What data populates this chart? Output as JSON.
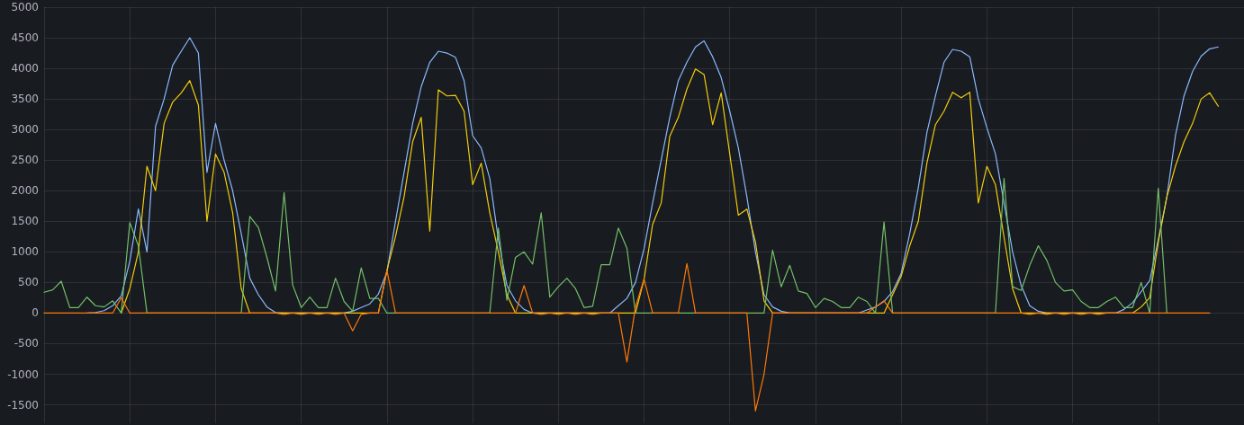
{
  "chart_data": {
    "type": "line",
    "categories": [
      null,
      null,
      null,
      null,
      null,
      null,
      null,
      null,
      null,
      null,
      null,
      null,
      null,
      null,
      null,
      null,
      null,
      null,
      null,
      null,
      null,
      null,
      null,
      null,
      null,
      null,
      null,
      null,
      null,
      null,
      null,
      null,
      null,
      null,
      null,
      null,
      null,
      null,
      null,
      null,
      null,
      null,
      null,
      null,
      null,
      null,
      null,
      null,
      null,
      null,
      null,
      null,
      null,
      null,
      null,
      null,
      null,
      null,
      null,
      null,
      null,
      null,
      null,
      null,
      null,
      null,
      null,
      null,
      null,
      null,
      null,
      null,
      null,
      null,
      null,
      null,
      null,
      null,
      null,
      null,
      null,
      null,
      null,
      null,
      null,
      null,
      null,
      null,
      null,
      null,
      null,
      null,
      null,
      null,
      null,
      null,
      null,
      null,
      null,
      null,
      null,
      null,
      null,
      null,
      null,
      null,
      null,
      null,
      null,
      null,
      null,
      null,
      null,
      null,
      null,
      null,
      null,
      null,
      null,
      null,
      null,
      null,
      null,
      null,
      null,
      null,
      null,
      null,
      null,
      null,
      null,
      null,
      null,
      null,
      null,
      null,
      null,
      null,
      null,
      null,
      null
    ],
    "series": [
      {
        "color": "#8ab8ff",
        "values": [
          null,
          null,
          null,
          null,
          null,
          0,
          10,
          40,
          120,
          280,
          850,
          1700,
          1000,
          3050,
          3500,
          4050,
          4280,
          4500,
          4250,
          2300,
          3100,
          2500,
          2000,
          1300,
          570,
          300,
          100,
          10,
          0,
          0,
          0,
          0,
          0,
          0,
          0,
          0,
          30,
          90,
          150,
          310,
          670,
          1500,
          2300,
          3100,
          3700,
          4100,
          4280,
          4250,
          4180,
          3800,
          2900,
          2700,
          2200,
          1200,
          450,
          200,
          60,
          0,
          0,
          0,
          0,
          0,
          0,
          0,
          0,
          0,
          0,
          120,
          240,
          500,
          1050,
          1800,
          2500,
          3200,
          3800,
          4100,
          4350,
          4450,
          4190,
          3850,
          3300,
          2700,
          1900,
          1000,
          300,
          100,
          30,
          0,
          0,
          0,
          0,
          0,
          0,
          0,
          0,
          0,
          50,
          100,
          190,
          350,
          650,
          1300,
          2050,
          2950,
          3550,
          4100,
          4310,
          4280,
          4190,
          3500,
          3030,
          2600,
          1800,
          1000,
          450,
          120,
          30,
          0,
          0,
          0,
          0,
          0,
          0,
          0,
          0,
          0,
          60,
          170,
          350,
          530,
          1200,
          1900,
          2900,
          3550,
          3950,
          4200,
          4320,
          4350,
          null,
          null,
          null
        ]
      },
      {
        "color": "#f2cc0c",
        "values": [
          null,
          null,
          null,
          null,
          null,
          null,
          null,
          null,
          null,
          0,
          400,
          1000,
          2400,
          2000,
          3100,
          3450,
          3600,
          3800,
          3400,
          1500,
          2600,
          2300,
          1640,
          400,
          0,
          0,
          0,
          0,
          0,
          0,
          0,
          0,
          0,
          0,
          0,
          0,
          0,
          0,
          0,
          0,
          700,
          1250,
          1900,
          2800,
          3200,
          1340,
          3650,
          3550,
          3560,
          3300,
          2100,
          2450,
          1640,
          1000,
          300,
          0,
          0,
          0,
          0,
          0,
          0,
          0,
          0,
          0,
          0,
          0,
          0,
          0,
          0,
          0,
          550,
          1450,
          1800,
          2890,
          3200,
          3660,
          3990,
          3900,
          3080,
          3600,
          2600,
          1600,
          1700,
          1160,
          200,
          0,
          0,
          0,
          0,
          0,
          0,
          0,
          0,
          0,
          0,
          0,
          0,
          0,
          0,
          300,
          600,
          1100,
          1500,
          2450,
          3080,
          3300,
          3610,
          3520,
          3610,
          1800,
          2400,
          2100,
          1240,
          400,
          0,
          0,
          0,
          0,
          0,
          0,
          0,
          0,
          0,
          0,
          0,
          0,
          0,
          0,
          100,
          250,
          1160,
          1900,
          2400,
          2800,
          3100,
          3500,
          3600,
          3380,
          null,
          null,
          null
        ]
      },
      {
        "color": "#73bf69",
        "values": [
          340,
          380,
          520,
          90,
          90,
          260,
          120,
          100,
          200,
          0,
          1480,
          1100,
          0,
          0,
          0,
          0,
          0,
          0,
          0,
          0,
          0,
          0,
          0,
          0,
          1580,
          1400,
          910,
          360,
          1970,
          460,
          90,
          260,
          90,
          90,
          570,
          190,
          30,
          740,
          240,
          240,
          0,
          0,
          0,
          0,
          0,
          0,
          0,
          0,
          0,
          0,
          0,
          0,
          0,
          1390,
          210,
          910,
          1000,
          800,
          1640,
          260,
          430,
          570,
          400,
          90,
          110,
          790,
          790,
          1390,
          1060,
          0,
          0,
          0,
          0,
          0,
          0,
          0,
          0,
          0,
          0,
          0,
          0,
          0,
          0,
          0,
          0,
          1030,
          430,
          780,
          360,
          320,
          90,
          240,
          190,
          90,
          90,
          260,
          190,
          0,
          1490,
          0,
          0,
          0,
          0,
          0,
          0,
          0,
          0,
          0,
          0,
          0,
          0,
          0,
          2200,
          430,
          370,
          780,
          1100,
          860,
          500,
          360,
          380,
          190,
          90,
          90,
          190,
          260,
          90,
          90,
          500,
          0,
          2040,
          0,
          null,
          null,
          null,
          null,
          null,
          null,
          null,
          null,
          null
        ]
      },
      {
        "color": "#ff780a",
        "values": [
          0,
          0,
          0,
          0,
          0,
          0,
          0,
          0,
          0,
          250,
          0,
          0,
          0,
          0,
          0,
          0,
          0,
          0,
          0,
          0,
          0,
          0,
          0,
          0,
          0,
          0,
          0,
          0,
          -20,
          0,
          -20,
          0,
          -20,
          0,
          -20,
          0,
          -290,
          -20,
          0,
          0,
          700,
          0,
          0,
          0,
          0,
          0,
          0,
          0,
          0,
          0,
          0,
          0,
          0,
          0,
          0,
          0,
          450,
          0,
          -20,
          0,
          -20,
          0,
          -20,
          0,
          -20,
          0,
          0,
          0,
          -800,
          100,
          560,
          0,
          0,
          0,
          0,
          810,
          0,
          0,
          0,
          0,
          0,
          0,
          0,
          -1600,
          -1000,
          0,
          0,
          0,
          0,
          0,
          0,
          0,
          0,
          0,
          0,
          0,
          0,
          100,
          200,
          0,
          0,
          0,
          0,
          0,
          0,
          0,
          0,
          0,
          0,
          0,
          0,
          0,
          0,
          0,
          0,
          -20,
          0,
          -20,
          0,
          -20,
          0,
          -20,
          0,
          -20,
          0,
          0,
          0,
          0,
          0,
          0,
          0,
          0,
          0,
          0,
          0,
          0,
          0,
          null,
          null,
          null,
          null
        ]
      }
    ],
    "ylim": [
      -1800,
      5000
    ],
    "yticks": [
      -1500,
      -1000,
      -500,
      0,
      500,
      1000,
      1500,
      2000,
      2500,
      3000,
      3500,
      4000,
      4500,
      5000
    ],
    "grid": true,
    "tick_labels": "y"
  }
}
